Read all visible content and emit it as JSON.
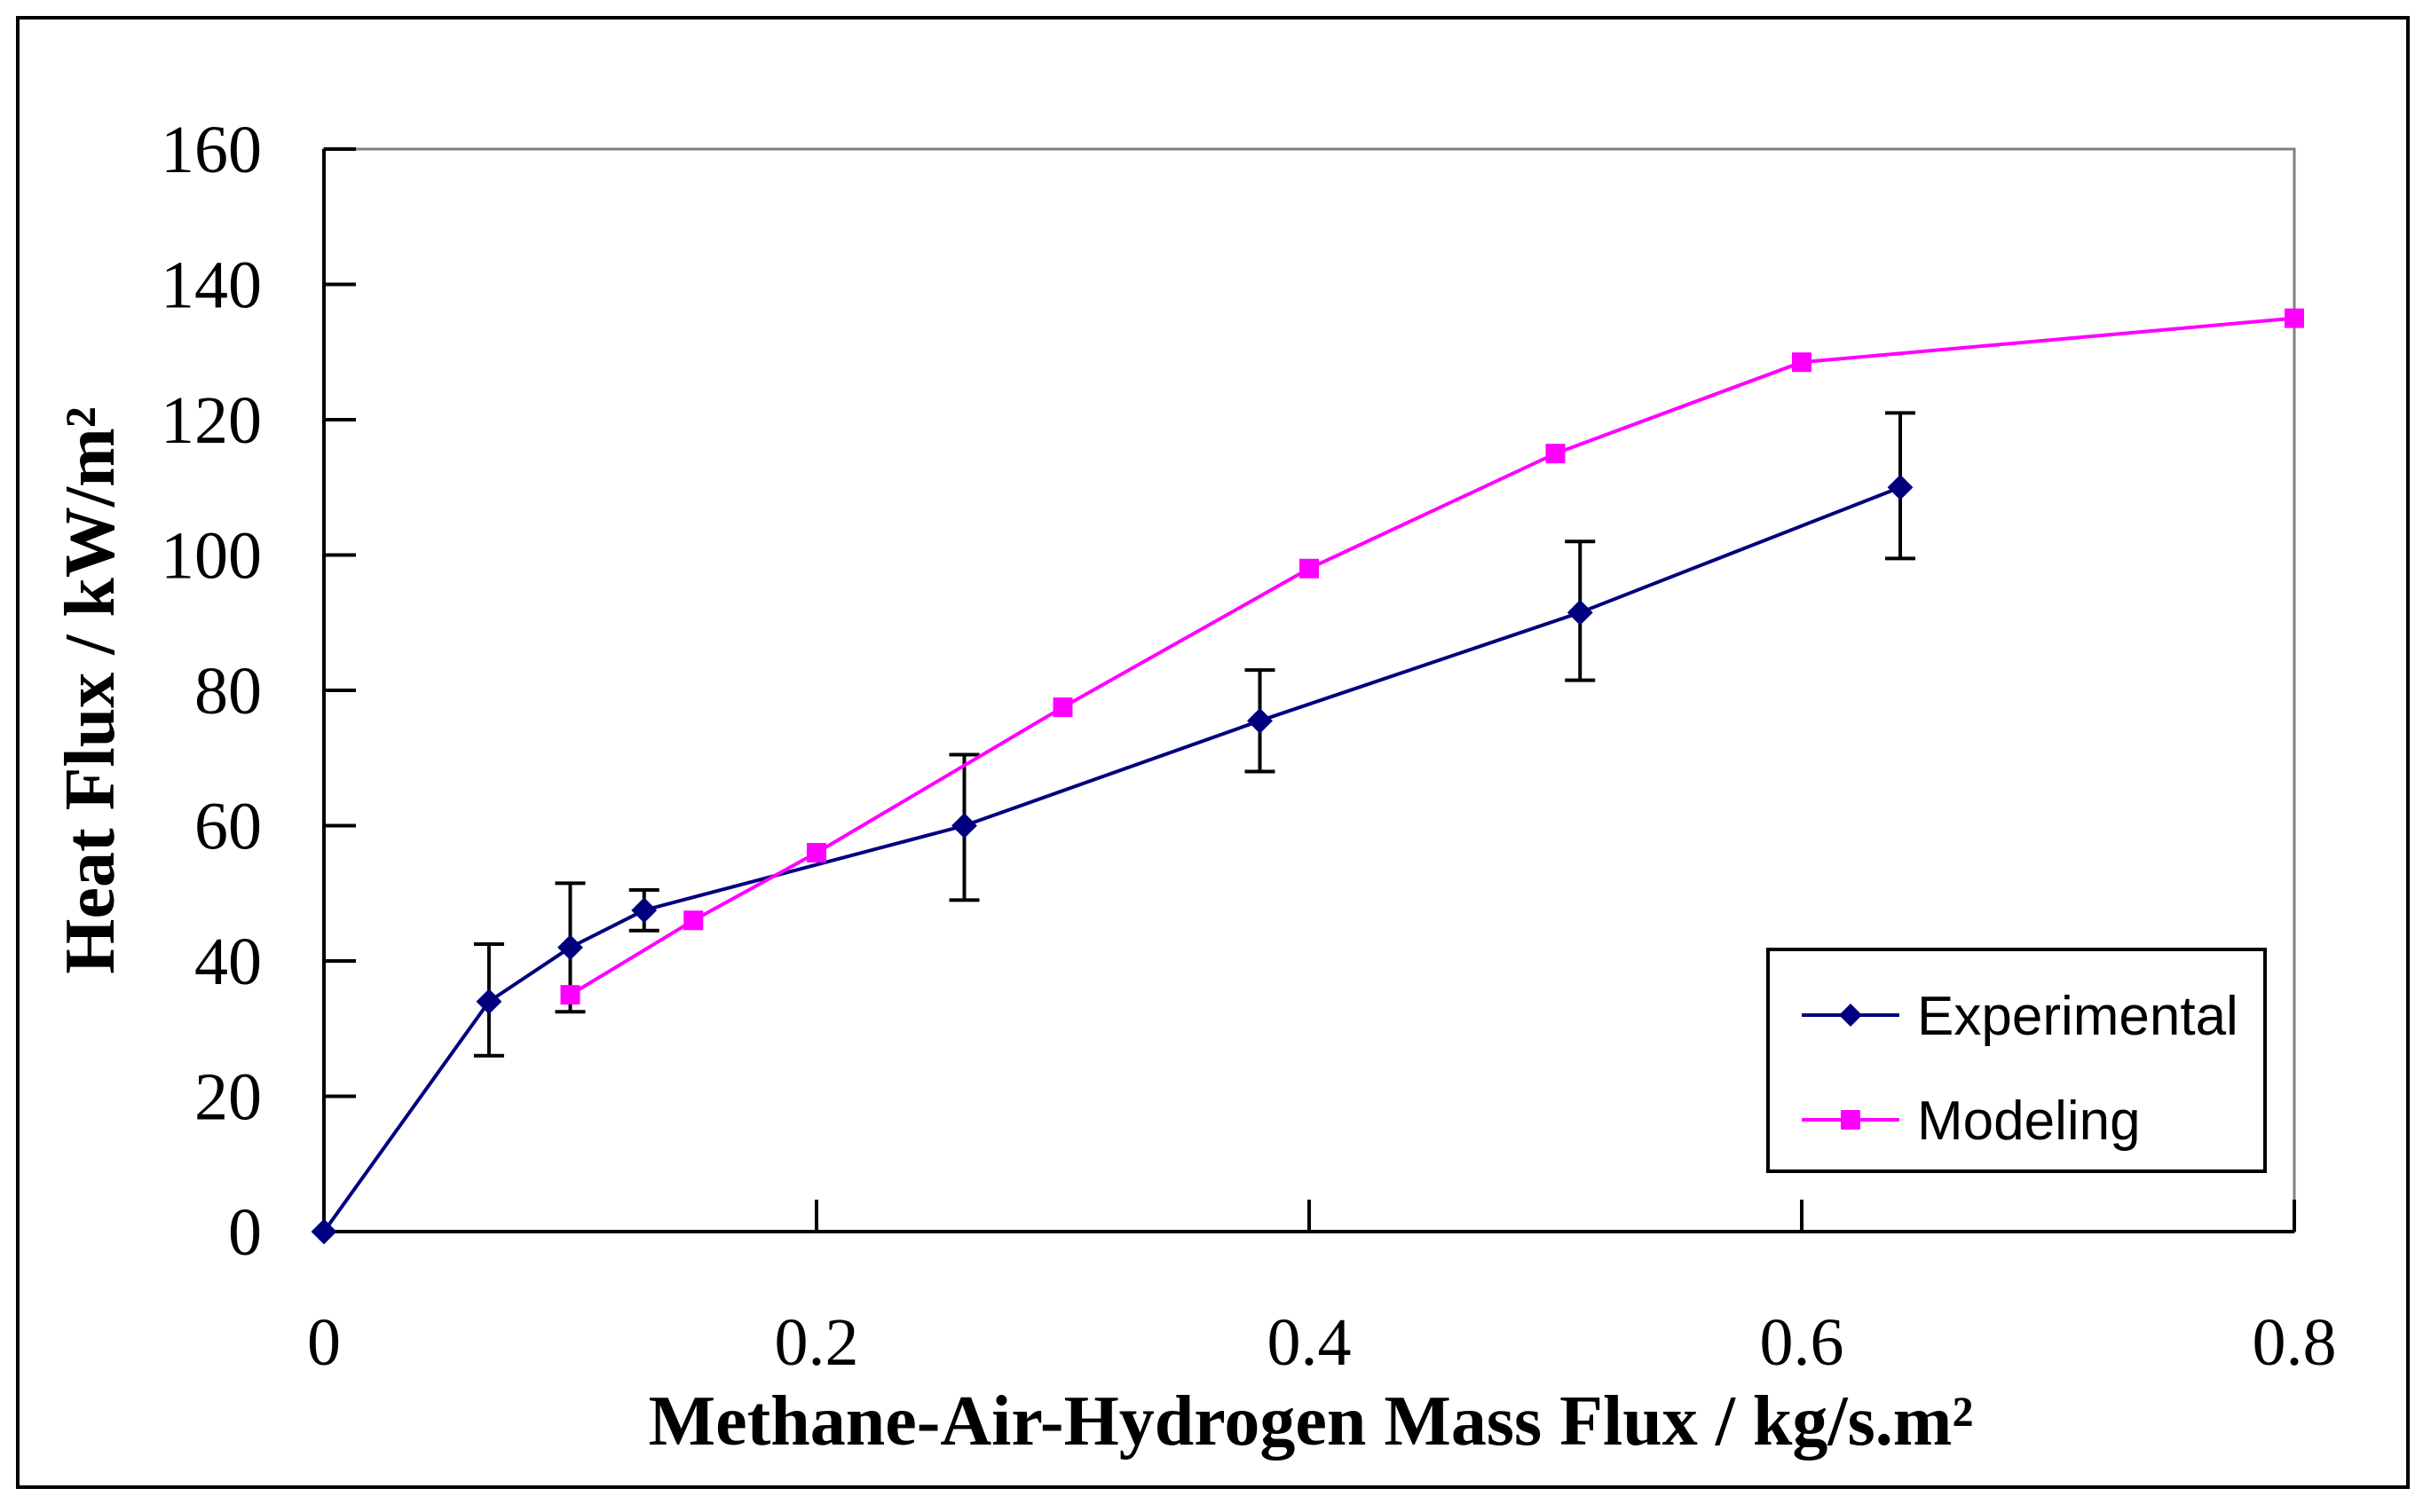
{
  "chart_data": {
    "type": "line",
    "xlabel": "Methane-Air-Hydrogen Mass Flux / kg/s.m²",
    "ylabel": "Heat Flux / kW/m²",
    "xlim": [
      0,
      0.8
    ],
    "ylim": [
      0,
      160
    ],
    "x_ticks": [
      0,
      0.2,
      0.4,
      0.6,
      0.8
    ],
    "x_tick_labels": [
      "0",
      "0.2",
      "0.4",
      "0.6",
      "0.8"
    ],
    "y_ticks": [
      0,
      20,
      40,
      60,
      80,
      100,
      120,
      140,
      160
    ],
    "y_tick_labels": [
      "0",
      "20",
      "40",
      "60",
      "80",
      "100",
      "120",
      "140",
      "160"
    ],
    "grid": false,
    "legend_position": "bottom-right",
    "series": [
      {
        "name": "Experimental",
        "color": "#00007f",
        "marker": "diamond",
        "x": [
          0,
          0.067,
          0.1,
          0.13,
          0.26,
          0.38,
          0.51,
          0.64
        ],
        "y": [
          0,
          34,
          42,
          47.5,
          60,
          75.5,
          91.5,
          110
        ],
        "err_low": [
          0,
          26,
          32.5,
          44.5,
          49,
          68,
          81.5,
          99.5
        ],
        "err_high": [
          0,
          42.5,
          51.5,
          50.5,
          70.5,
          83,
          102,
          121
        ]
      },
      {
        "name": "Modeling",
        "color": "#ff00ff",
        "marker": "square",
        "x": [
          0.1,
          0.15,
          0.2,
          0.3,
          0.4,
          0.5,
          0.6,
          0.8
        ],
        "y": [
          35,
          46,
          56,
          77.5,
          98,
          115,
          128.5,
          135
        ]
      }
    ]
  }
}
